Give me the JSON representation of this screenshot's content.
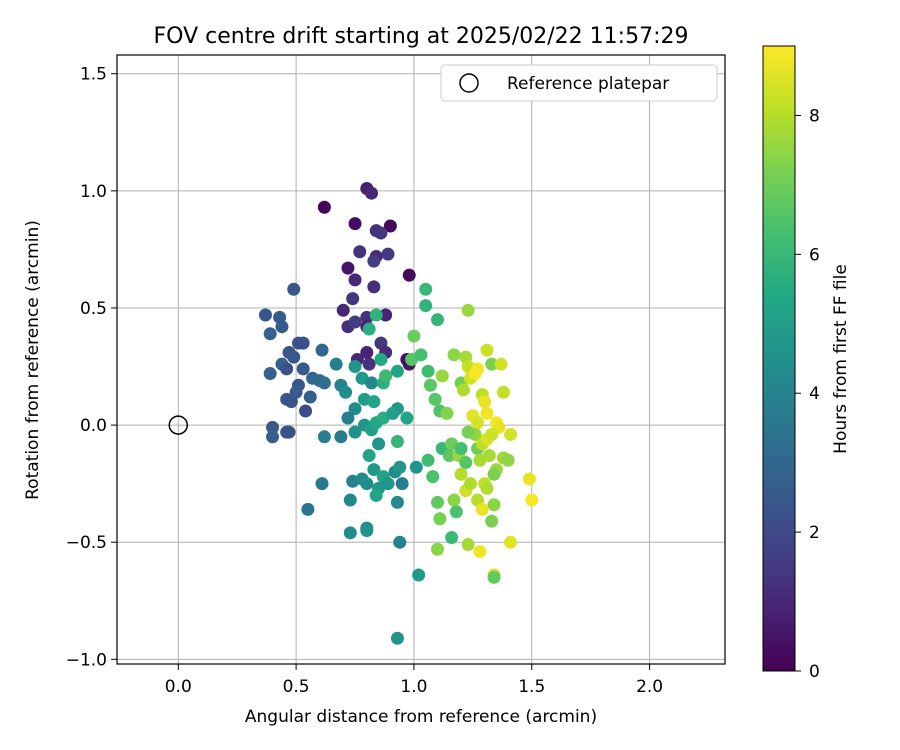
{
  "chart_data": {
    "type": "scatter",
    "title": "FOV centre drift starting at 2025/02/22 11:57:29",
    "xlabel": "Angular distance from reference (arcmin)",
    "ylabel": "Rotation from reference (arcmin)",
    "xlim": [
      -0.26,
      2.32
    ],
    "ylim": [
      -1.02,
      1.58
    ],
    "xticks": [
      0.0,
      0.5,
      1.0,
      1.5,
      2.0
    ],
    "yticks": [
      -1.0,
      -0.5,
      0.0,
      0.5,
      1.0,
      1.5
    ],
    "grid": true,
    "legend": {
      "placement": "top-right",
      "entries": [
        "Reference platepar"
      ]
    },
    "reference_point": {
      "x": 0.0,
      "y": 0.0,
      "marker": "open-circle"
    },
    "colorbar": {
      "label": "Hours from first FF file",
      "colormap": "viridis",
      "range": [
        0,
        9
      ],
      "ticks": [
        0,
        2,
        4,
        6,
        8
      ]
    },
    "points": [
      [
        0.62,
        0.93,
        0.1
      ],
      [
        0.8,
        1.01,
        0.8
      ],
      [
        0.82,
        0.99,
        1.0
      ],
      [
        0.75,
        0.86,
        0.3
      ],
      [
        0.9,
        0.85,
        0.2
      ],
      [
        0.84,
        0.83,
        1.2
      ],
      [
        0.86,
        0.82,
        1.4
      ],
      [
        0.77,
        0.74,
        1.3
      ],
      [
        0.84,
        0.72,
        1.1
      ],
      [
        0.89,
        0.73,
        1.5
      ],
      [
        0.83,
        0.7,
        1.6
      ],
      [
        0.72,
        0.67,
        0.5
      ],
      [
        0.75,
        0.62,
        1.0
      ],
      [
        0.98,
        0.64,
        0.2
      ],
      [
        0.83,
        0.59,
        1.2
      ],
      [
        0.49,
        0.58,
        2.4
      ],
      [
        0.74,
        0.54,
        1.4
      ],
      [
        0.7,
        0.49,
        1.0
      ],
      [
        0.8,
        0.46,
        1.3
      ],
      [
        0.88,
        0.47,
        0.9
      ],
      [
        0.72,
        0.42,
        1.2
      ],
      [
        0.8,
        0.42,
        0.8
      ],
      [
        0.75,
        0.44,
        1.6
      ],
      [
        0.37,
        0.47,
        2.4
      ],
      [
        0.39,
        0.39,
        2.8
      ],
      [
        0.44,
        0.42,
        2.5
      ],
      [
        0.43,
        0.46,
        2.6
      ],
      [
        0.51,
        0.35,
        2.4
      ],
      [
        0.53,
        0.35,
        2.2
      ],
      [
        0.76,
        0.28,
        1.0
      ],
      [
        0.8,
        0.31,
        0.9
      ],
      [
        0.81,
        0.26,
        1.3
      ],
      [
        0.86,
        0.35,
        1.5
      ],
      [
        0.88,
        0.31,
        1.1
      ],
      [
        0.98,
        0.26,
        0.6
      ],
      [
        0.97,
        0.28,
        0.3
      ],
      [
        0.47,
        0.31,
        2.3
      ],
      [
        0.49,
        0.29,
        2.5
      ],
      [
        0.44,
        0.26,
        2.7
      ],
      [
        0.46,
        0.24,
        2.2
      ],
      [
        0.53,
        0.24,
        2.6
      ],
      [
        0.61,
        0.32,
        3.0
      ],
      [
        0.39,
        0.22,
        2.8
      ],
      [
        0.57,
        0.2,
        2.9
      ],
      [
        0.6,
        0.19,
        3.1
      ],
      [
        0.62,
        0.18,
        3.2
      ],
      [
        0.51,
        0.17,
        2.4
      ],
      [
        0.5,
        0.14,
        2.6
      ],
      [
        0.56,
        0.12,
        2.7
      ],
      [
        0.46,
        0.11,
        2.5
      ],
      [
        0.48,
        0.1,
        2.3
      ],
      [
        0.54,
        0.06,
        2.1
      ],
      [
        0.4,
        -0.01,
        2.5
      ],
      [
        0.4,
        -0.05,
        2.7
      ],
      [
        0.46,
        -0.03,
        2.4
      ],
      [
        0.47,
        -0.03,
        2.2
      ],
      [
        0.62,
        -0.05,
        3.8
      ],
      [
        0.69,
        -0.05,
        3.6
      ],
      [
        0.61,
        -0.25,
        3.6
      ],
      [
        0.55,
        -0.36,
        3.5
      ],
      [
        0.67,
        0.26,
        3.9
      ],
      [
        0.69,
        0.17,
        4.0
      ],
      [
        0.71,
        0.14,
        4.4
      ],
      [
        0.75,
        0.25,
        4.6
      ],
      [
        0.78,
        0.2,
        4.8
      ],
      [
        0.82,
        0.18,
        4.1
      ],
      [
        0.75,
        0.07,
        4.3
      ],
      [
        0.79,
        0.11,
        4.9
      ],
      [
        0.83,
        0.1,
        5.3
      ],
      [
        0.87,
        0.18,
        5.7
      ],
      [
        0.81,
        0.41,
        5.6
      ],
      [
        0.84,
        0.47,
        5.8
      ],
      [
        0.86,
        0.28,
        5.4
      ],
      [
        0.88,
        0.21,
        6.1
      ],
      [
        0.93,
        0.23,
        5.2
      ],
      [
        0.99,
        0.28,
        6.6
      ],
      [
        1.0,
        0.38,
        6.9
      ],
      [
        1.03,
        0.3,
        6.3
      ],
      [
        1.05,
        0.58,
        6.0
      ],
      [
        1.05,
        0.51,
        5.8
      ],
      [
        1.1,
        0.45,
        5.9
      ],
      [
        0.72,
        0.03,
        3.8
      ],
      [
        0.75,
        -0.03,
        4.5
      ],
      [
        0.79,
        0.0,
        4.7
      ],
      [
        0.82,
        -0.02,
        5.1
      ],
      [
        0.84,
        0.01,
        5.4
      ],
      [
        0.87,
        0.03,
        5.6
      ],
      [
        0.85,
        -0.08,
        4.6
      ],
      [
        0.81,
        -0.13,
        5.3
      ],
      [
        0.83,
        -0.19,
        4.9
      ],
      [
        0.87,
        -0.22,
        5.2
      ],
      [
        0.85,
        -0.27,
        4.8
      ],
      [
        0.84,
        -0.3,
        5.3
      ],
      [
        0.8,
        -0.25,
        4.4
      ],
      [
        0.74,
        -0.24,
        4.0
      ],
      [
        0.78,
        -0.23,
        4.3
      ],
      [
        0.73,
        -0.32,
        4.2
      ],
      [
        0.73,
        -0.46,
        4.4
      ],
      [
        0.8,
        -0.44,
        4.2
      ],
      [
        0.8,
        -0.45,
        4.5
      ],
      [
        0.89,
        -0.25,
        4.6
      ],
      [
        0.92,
        -0.2,
        4.4
      ],
      [
        0.94,
        -0.18,
        4.7
      ],
      [
        0.93,
        -0.33,
        4.2
      ],
      [
        0.95,
        -0.25,
        3.8
      ],
      [
        0.94,
        -0.5,
        3.9
      ],
      [
        0.93,
        -0.91,
        4.6
      ],
      [
        1.02,
        -0.64,
        4.9
      ],
      [
        1.01,
        -0.18,
        4.6
      ],
      [
        0.93,
        -0.07,
        5.9
      ],
      [
        0.97,
        0.03,
        5.3
      ],
      [
        0.93,
        0.07,
        4.7
      ],
      [
        0.91,
        0.05,
        5.1
      ],
      [
        1.06,
        0.23,
        6.2
      ],
      [
        1.07,
        0.17,
        6.7
      ],
      [
        1.09,
        0.11,
        6.6
      ],
      [
        1.11,
        0.06,
        6.5
      ],
      [
        1.12,
        0.21,
        7.6
      ],
      [
        1.14,
        0.05,
        7.3
      ],
      [
        1.12,
        -0.1,
        6.0
      ],
      [
        1.08,
        -0.22,
        6.4
      ],
      [
        1.06,
        -0.15,
        6.2
      ],
      [
        1.1,
        -0.33,
        6.8
      ],
      [
        1.11,
        -0.4,
        7.1
      ],
      [
        1.1,
        -0.53,
        7.4
      ],
      [
        1.16,
        -0.08,
        7.0
      ],
      [
        1.15,
        -0.13,
        6.7
      ],
      [
        1.16,
        -0.48,
        6.1
      ],
      [
        1.17,
        -0.32,
        7.4
      ],
      [
        1.18,
        -0.37,
        6.4
      ],
      [
        1.19,
        -0.13,
        7.6
      ],
      [
        1.17,
        0.3,
        7.4
      ],
      [
        1.2,
        0.18,
        7.1
      ],
      [
        1.22,
        0.29,
        7.8
      ],
      [
        1.21,
        0.15,
        7.9
      ],
      [
        1.23,
        0.25,
        8.2
      ],
      [
        1.24,
        0.2,
        8.4
      ],
      [
        1.27,
        0.24,
        8.8
      ],
      [
        1.26,
        0.22,
        8.9
      ],
      [
        1.23,
        0.49,
        7.6
      ],
      [
        1.29,
        0.13,
        8.1
      ],
      [
        1.3,
        0.1,
        8.7
      ],
      [
        1.31,
        0.32,
        8.3
      ],
      [
        1.33,
        0.26,
        7.2
      ],
      [
        1.37,
        0.26,
        8.4
      ],
      [
        1.38,
        0.14,
        8.2
      ],
      [
        1.25,
        0.04,
        8.6
      ],
      [
        1.27,
        0.01,
        8.5
      ],
      [
        1.31,
        0.05,
        8.8
      ],
      [
        1.35,
        0.01,
        8.9
      ],
      [
        1.36,
        -0.01,
        8.7
      ],
      [
        1.26,
        -0.04,
        7.5
      ],
      [
        1.23,
        -0.03,
        7.1
      ],
      [
        1.2,
        -0.1,
        6.3
      ],
      [
        1.22,
        -0.16,
        6.6
      ],
      [
        1.27,
        -0.1,
        7.0
      ],
      [
        1.28,
        -0.15,
        7.8
      ],
      [
        1.29,
        -0.08,
        8.1
      ],
      [
        1.31,
        -0.06,
        8.5
      ],
      [
        1.33,
        -0.04,
        8.3
      ],
      [
        1.32,
        -0.13,
        7.8
      ],
      [
        1.35,
        -0.19,
        7.6
      ],
      [
        1.34,
        -0.21,
        7.2
      ],
      [
        1.38,
        -0.14,
        7.7
      ],
      [
        1.4,
        -0.15,
        7.5
      ],
      [
        1.41,
        -0.04,
        8.4
      ],
      [
        1.2,
        -0.21,
        8.0
      ],
      [
        1.22,
        -0.28,
        8.3
      ],
      [
        1.24,
        -0.25,
        7.9
      ],
      [
        1.27,
        -0.32,
        8.0
      ],
      [
        1.29,
        -0.36,
        8.7
      ],
      [
        1.3,
        -0.25,
        8.2
      ],
      [
        1.31,
        -0.27,
        7.9
      ],
      [
        1.34,
        -0.34,
        7.4
      ],
      [
        1.33,
        -0.41,
        7.2
      ],
      [
        1.28,
        -0.54,
        8.8
      ],
      [
        1.23,
        -0.51,
        7.8
      ],
      [
        1.34,
        -0.64,
        8.4
      ],
      [
        1.34,
        -0.65,
        6.8
      ],
      [
        1.41,
        -0.5,
        8.6
      ],
      [
        1.49,
        -0.23,
        8.7
      ],
      [
        1.5,
        -0.32,
        8.9
      ]
    ]
  }
}
